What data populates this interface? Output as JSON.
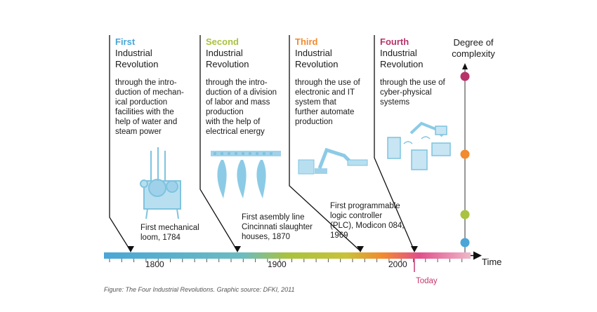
{
  "revolutions": [
    {
      "ordinal": "First",
      "title_line1": "Industrial",
      "title_line2": "Revolution",
      "color": "#4aa6d6",
      "desc": [
        "through the intro-",
        "duction of mechan-",
        "ical porduction",
        "facilities with the",
        "help of water and",
        "steam power"
      ],
      "icon": "mechanical-loom-icon"
    },
    {
      "ordinal": "Second",
      "title_line1": "Industrial",
      "title_line2": "Revolution",
      "color": "#a9c23f",
      "desc": [
        "through the intro-",
        "duction of a division",
        "of labor and mass",
        "production",
        "with the help of",
        "electrical energy"
      ],
      "icon": "assembly-line-icon"
    },
    {
      "ordinal": "Third",
      "title_line1": "Industrial",
      "title_line2": "Revolution",
      "color": "#f28a2e",
      "desc": [
        "through the use of",
        "electronic and IT",
        "system that",
        "further automate",
        "production"
      ],
      "icon": "robot-arm-icon"
    },
    {
      "ordinal": "Fourth",
      "title_line1": "Industrial",
      "title_line2": "Revolution",
      "color": "#b8336a",
      "desc": [
        "through the use of",
        "cyber-physical",
        "systems"
      ],
      "icon": "cyber-physical-devices-icon"
    }
  ],
  "events": [
    {
      "lines": [
        "First mechanical",
        "loom, 1784"
      ]
    },
    {
      "lines": [
        "First asembly line",
        "Cincinnati slaughter",
        "houses, 1870"
      ]
    },
    {
      "lines": [
        "First programmable",
        "logic controller",
        "(PLC), Modicon 084,",
        "1969"
      ]
    }
  ],
  "axis": {
    "ticks": [
      "1800",
      "1900",
      "2000"
    ],
    "today": "Today",
    "time_label": "Time"
  },
  "degree": {
    "line1": "Degree of",
    "line2": "complexity"
  },
  "caption": "Figure: The Four Industrial Revolutions. Graphic source: DFKI, 2011",
  "dot_colors": [
    "#4aa6d6",
    "#a9c23f",
    "#f28a2e",
    "#b8336a"
  ]
}
